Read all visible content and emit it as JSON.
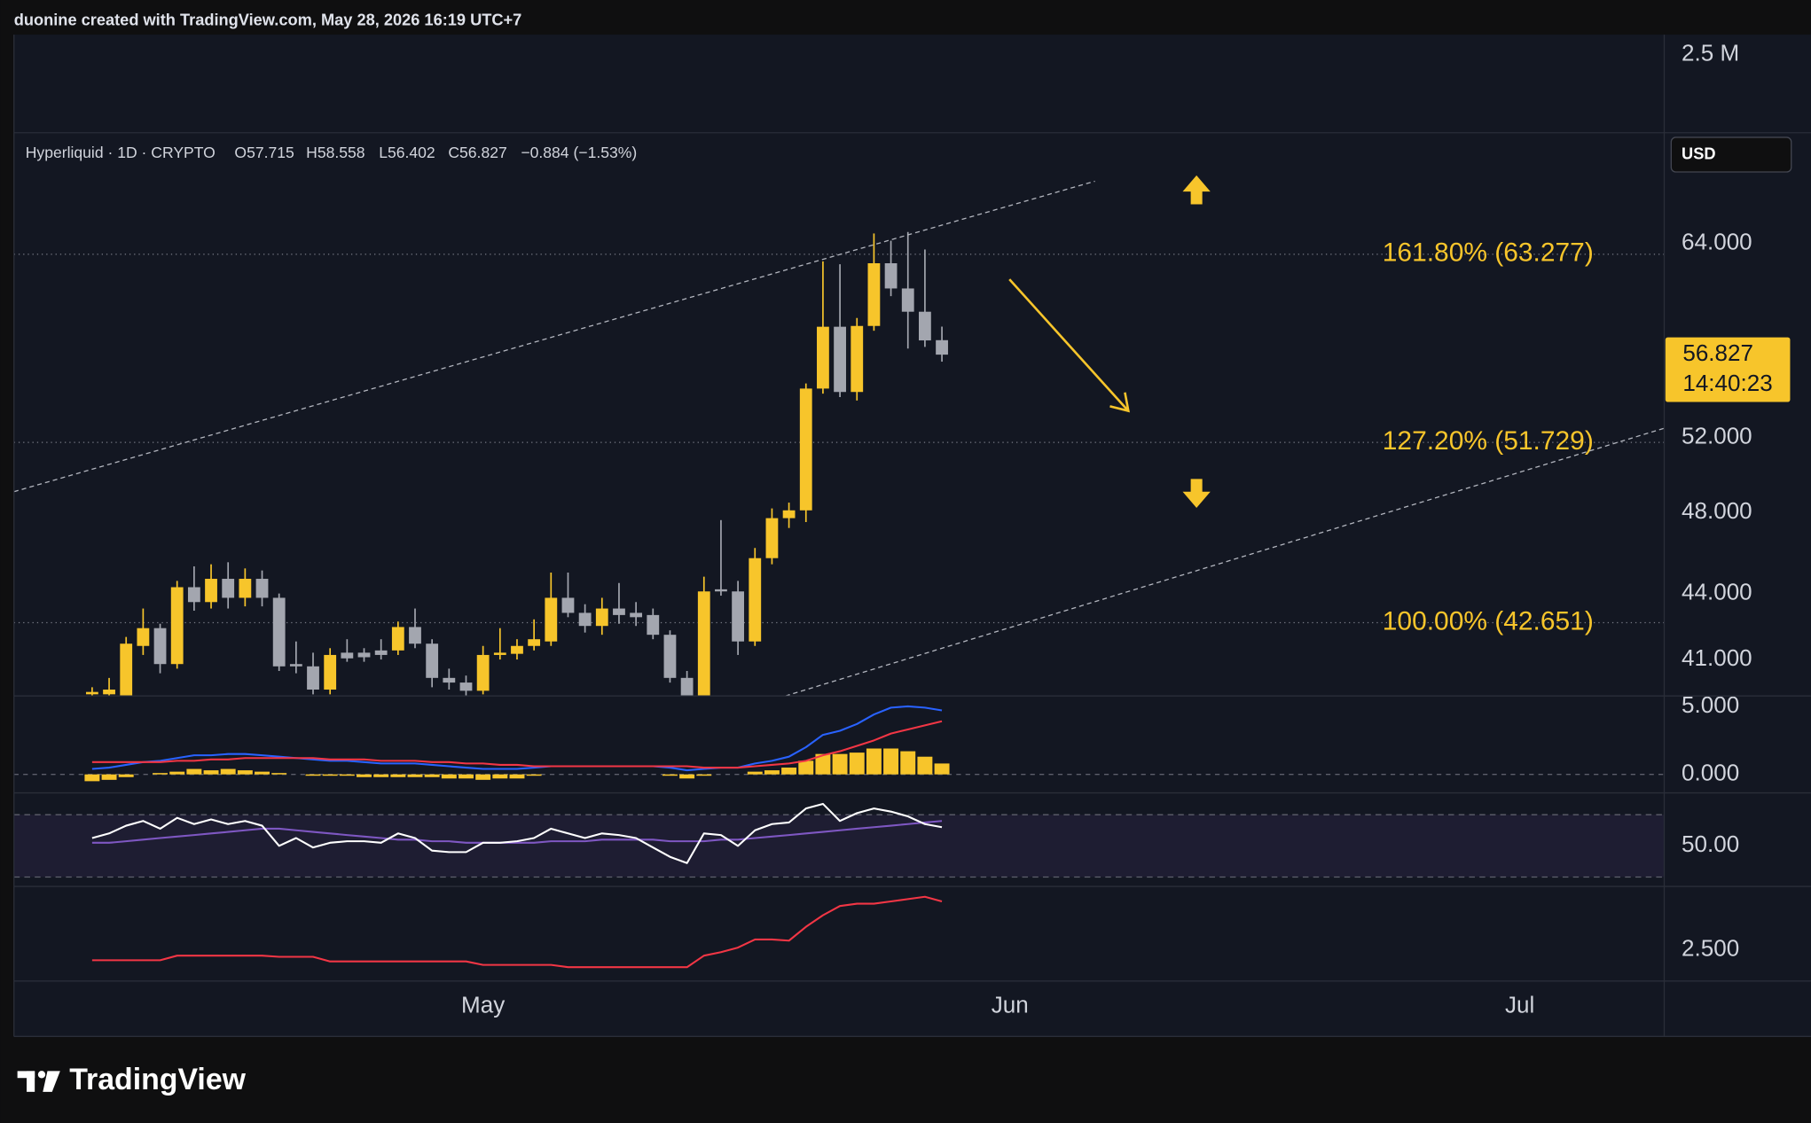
{
  "header": {
    "credit": "duonine created with TradingView.com, May 28, 2026 16:19 UTC+7"
  },
  "footer": {
    "brand": "TradingView"
  },
  "currency": "USD",
  "chart_data": [
    {
      "type": "bar",
      "ylim": [
        0,
        3140000
      ],
      "yticks": [
        {
          "value": 2500000,
          "label": "2.5 M"
        }
      ]
    },
    {
      "type": "candlestick",
      "title": "Hyperliquid · 1D · CRYPTO",
      "ohlc_labels": [
        "O57.715",
        "H58.558",
        "L56.402",
        "C56.827"
      ],
      "change_label": "−0.884 (−1.53%)",
      "log_scale": true,
      "grid": false,
      "up_color": "#f7c52b",
      "down_color": "#a3a6af",
      "candles": [
        [
          39.5,
          39.8,
          39.3,
          39.6
        ],
        [
          39.5,
          40.2,
          39.3,
          39.7
        ],
        [
          39.4,
          42.0,
          39.2,
          41.7
        ],
        [
          41.6,
          43.3,
          41.2,
          42.4
        ],
        [
          42.4,
          42.6,
          40.4,
          40.8
        ],
        [
          40.8,
          44.6,
          40.6,
          44.3
        ],
        [
          44.3,
          45.3,
          43.2,
          43.6
        ],
        [
          43.6,
          45.4,
          43.3,
          44.7
        ],
        [
          44.7,
          45.5,
          43.3,
          43.8
        ],
        [
          43.8,
          45.2,
          43.4,
          44.7
        ],
        [
          44.7,
          45.1,
          43.4,
          43.8
        ],
        [
          43.8,
          44.0,
          40.5,
          40.7
        ],
        [
          40.8,
          41.8,
          40.4,
          40.7
        ],
        [
          40.7,
          41.3,
          39.5,
          39.7
        ],
        [
          39.7,
          41.5,
          39.5,
          41.2
        ],
        [
          41.3,
          41.9,
          40.9,
          41.05
        ],
        [
          41.3,
          41.5,
          40.9,
          41.1
        ],
        [
          41.4,
          41.9,
          41.0,
          41.2
        ],
        [
          41.4,
          42.7,
          41.2,
          42.45
        ],
        [
          42.45,
          43.3,
          41.5,
          41.7
        ],
        [
          41.7,
          41.9,
          39.8,
          40.2
        ],
        [
          40.2,
          40.6,
          39.7,
          40.0
        ],
        [
          40.0,
          40.3,
          39.4,
          39.65
        ],
        [
          39.65,
          41.6,
          39.5,
          41.2
        ],
        [
          41.2,
          42.4,
          41.0,
          41.3
        ],
        [
          41.25,
          41.9,
          41.0,
          41.6
        ],
        [
          41.6,
          42.8,
          41.4,
          41.9
        ],
        [
          41.8,
          45.0,
          41.6,
          43.8
        ],
        [
          43.8,
          45.0,
          42.9,
          43.1
        ],
        [
          43.1,
          43.5,
          42.2,
          42.5
        ],
        [
          42.5,
          43.8,
          42.1,
          43.3
        ],
        [
          43.3,
          44.5,
          42.6,
          43.0
        ],
        [
          43.1,
          43.6,
          42.5,
          42.9
        ],
        [
          43.0,
          43.3,
          41.9,
          42.1
        ],
        [
          42.1,
          42.3,
          40.0,
          40.2
        ],
        [
          40.2,
          40.5,
          39.1,
          39.3
        ],
        [
          39.3,
          44.8,
          39.1,
          44.1
        ],
        [
          44.2,
          47.6,
          43.9,
          44.1
        ],
        [
          44.1,
          44.6,
          41.2,
          41.8
        ],
        [
          41.8,
          46.2,
          41.6,
          45.7
        ],
        [
          45.7,
          48.2,
          45.4,
          47.7
        ],
        [
          47.7,
          48.5,
          47.2,
          48.1
        ],
        [
          48.1,
          55.1,
          47.5,
          54.8
        ],
        [
          54.8,
          62.8,
          54.5,
          58.55
        ],
        [
          58.55,
          62.6,
          54.3,
          54.6
        ],
        [
          54.6,
          59.1,
          54.1,
          58.6
        ],
        [
          58.6,
          64.7,
          58.3,
          62.67
        ],
        [
          62.67,
          64.2,
          60.5,
          61.0
        ],
        [
          61.0,
          64.8,
          57.2,
          59.5
        ],
        [
          59.5,
          63.6,
          57.3,
          57.7
        ],
        [
          57.715,
          58.558,
          56.402,
          56.827
        ]
      ],
      "price_countdown": "14:40:23",
      "levels": [
        {
          "value": 63.277,
          "label": "161.80% (63.277)"
        },
        {
          "value": 51.729,
          "label": "127.20% (51.729)"
        },
        {
          "value": 42.651,
          "label": "100.00% (42.651)"
        }
      ],
      "level_color": "#f7c52b",
      "ylim": [
        39.43,
        72.07
      ],
      "yticks": [
        {
          "value": 64,
          "label": "64.000"
        },
        {
          "value": 52,
          "label": "52.000"
        },
        {
          "value": 48,
          "label": "48.000"
        },
        {
          "value": 44,
          "label": "44.000"
        },
        {
          "value": 41,
          "label": "41.000"
        }
      ],
      "xlim": [
        -4.6,
        92.5
      ],
      "xticks": [
        {
          "value": 23,
          "label": "May"
        },
        {
          "value": 54,
          "label": "Jun"
        },
        {
          "value": 84,
          "label": "Jul"
        }
      ]
    },
    {
      "type": "line",
      "ylim": [
        -1.36,
        5.76
      ],
      "yticks": [
        {
          "value": 5,
          "label": "5.000"
        },
        {
          "value": 0,
          "label": "0.000"
        }
      ],
      "series": [
        {
          "color": "#f7c52b",
          "style": "bar",
          "values": [
            -0.5,
            -0.4,
            -0.2,
            0,
            0.1,
            0.2,
            0.4,
            0.3,
            0.4,
            0.3,
            0.2,
            0.1,
            0,
            -0.1,
            -0.1,
            -0.1,
            -0.2,
            -0.2,
            -0.2,
            -0.2,
            -0.2,
            -0.3,
            -0.3,
            -0.4,
            -0.3,
            -0.3,
            -0.1,
            0,
            0,
            0,
            0,
            0,
            0,
            0,
            -0.1,
            -0.3,
            -0.1,
            0,
            0,
            0.2,
            0.3,
            0.5,
            1.0,
            1.5,
            1.5,
            1.6,
            1.9,
            1.9,
            1.7,
            1.3,
            0.8
          ]
        },
        {
          "color": "#2962ff",
          "values": [
            0.4,
            0.5,
            0.7,
            0.9,
            1.0,
            1.2,
            1.4,
            1.4,
            1.5,
            1.5,
            1.4,
            1.3,
            1.2,
            1.1,
            1.0,
            1.0,
            0.9,
            0.8,
            0.8,
            0.8,
            0.7,
            0.6,
            0.5,
            0.4,
            0.4,
            0.4,
            0.5,
            0.6,
            0.6,
            0.6,
            0.6,
            0.6,
            0.6,
            0.6,
            0.5,
            0.3,
            0.4,
            0.5,
            0.5,
            0.8,
            1.0,
            1.3,
            2.0,
            2.9,
            3.2,
            3.7,
            4.4,
            4.9,
            5.0,
            4.9,
            4.7
          ]
        },
        {
          "color": "#f23645",
          "values": [
            0.9,
            0.9,
            0.9,
            0.9,
            0.9,
            1.0,
            1.0,
            1.1,
            1.1,
            1.2,
            1.2,
            1.2,
            1.2,
            1.2,
            1.1,
            1.1,
            1.1,
            1.0,
            1.0,
            1.0,
            0.9,
            0.9,
            0.8,
            0.8,
            0.7,
            0.7,
            0.6,
            0.6,
            0.6,
            0.6,
            0.6,
            0.6,
            0.6,
            0.6,
            0.6,
            0.6,
            0.5,
            0.5,
            0.5,
            0.6,
            0.7,
            0.8,
            1.0,
            1.4,
            1.7,
            2.1,
            2.5,
            3.0,
            3.3,
            3.6,
            3.9
          ]
        }
      ]
    },
    {
      "type": "line",
      "ylim": [
        24,
        84
      ],
      "yticks": [
        {
          "value": 50,
          "label": "50.00"
        }
      ],
      "bands": [
        70,
        30
      ],
      "series": [
        {
          "color": "#7e57c2",
          "values": [
            52,
            52,
            53,
            54,
            55,
            56,
            57,
            58,
            59,
            60,
            61,
            61,
            60,
            59,
            58,
            57,
            56,
            55,
            54,
            54,
            53,
            53,
            52,
            52,
            52,
            52,
            52,
            53,
            53,
            53,
            54,
            54,
            54,
            54,
            53,
            53,
            53,
            54,
            54,
            55,
            56,
            57,
            58,
            59,
            60,
            61,
            62,
            63,
            64,
            65,
            66
          ]
        },
        {
          "color": "#ffffff",
          "values": [
            55,
            58,
            63,
            66,
            61,
            68,
            64,
            67,
            64,
            66,
            63,
            50,
            55,
            49,
            52,
            53,
            53,
            52,
            58,
            55,
            47,
            46,
            46,
            52,
            52,
            53,
            55,
            61,
            58,
            55,
            58,
            57,
            55,
            49,
            43,
            39,
            58,
            57,
            50,
            60,
            64,
            65,
            74,
            77,
            66,
            71,
            74,
            72,
            69,
            64,
            62
          ]
        }
      ]
    },
    {
      "type": "line",
      "ylim": [
        1.15,
        5.25
      ],
      "yticks": [
        {
          "value": 2.5,
          "label": "2.500"
        }
      ],
      "series": [
        {
          "color": "#f23645",
          "values": [
            2.05,
            2.05,
            2.05,
            2.05,
            2.05,
            2.25,
            2.25,
            2.25,
            2.25,
            2.25,
            2.25,
            2.2,
            2.2,
            2.2,
            2.0,
            2.0,
            2.0,
            2.0,
            2.0,
            2.0,
            2.0,
            2.0,
            2.0,
            1.85,
            1.85,
            1.85,
            1.85,
            1.85,
            1.75,
            1.75,
            1.75,
            1.75,
            1.75,
            1.75,
            1.75,
            1.75,
            2.25,
            2.4,
            2.6,
            2.95,
            2.95,
            2.9,
            3.5,
            4.0,
            4.4,
            4.5,
            4.5,
            4.6,
            4.7,
            4.8,
            4.6
          ]
        }
      ]
    }
  ]
}
